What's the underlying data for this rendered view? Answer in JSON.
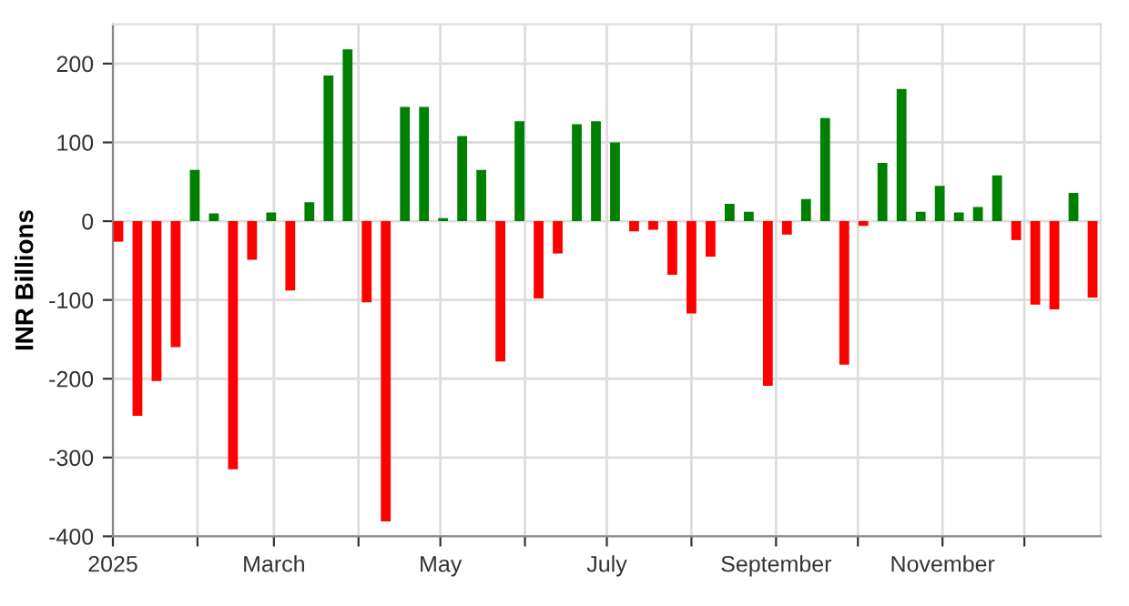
{
  "chart_data": {
    "type": "bar",
    "ylabel": "INR Billions",
    "x": [
      "2025-01-03",
      "2025-01-10",
      "2025-01-17",
      "2025-01-24",
      "2025-01-31",
      "2025-02-07",
      "2025-02-14",
      "2025-02-21",
      "2025-02-28",
      "2025-03-07",
      "2025-03-14",
      "2025-03-21",
      "2025-03-28",
      "2025-04-04",
      "2025-04-11",
      "2025-04-18",
      "2025-04-25",
      "2025-05-02",
      "2025-05-09",
      "2025-05-16",
      "2025-05-23",
      "2025-05-30",
      "2025-06-06",
      "2025-06-13",
      "2025-06-20",
      "2025-06-27",
      "2025-07-04",
      "2025-07-11",
      "2025-07-18",
      "2025-07-25",
      "2025-08-01",
      "2025-08-08",
      "2025-08-15",
      "2025-08-22",
      "2025-08-29",
      "2025-09-05",
      "2025-09-12",
      "2025-09-19",
      "2025-09-26",
      "2025-10-03",
      "2025-10-10",
      "2025-10-17",
      "2025-10-24",
      "2025-10-31",
      "2025-11-07",
      "2025-11-14",
      "2025-11-21",
      "2025-11-28",
      "2025-12-05",
      "2025-12-12",
      "2025-12-19",
      "2025-12-26"
    ],
    "values": [
      -26,
      -247,
      -203,
      -160,
      65,
      10,
      -315,
      -49,
      11,
      -88,
      24,
      185,
      218,
      -103,
      -381,
      145,
      145,
      4,
      108,
      65,
      -178,
      127,
      -98,
      -41,
      123,
      127,
      100,
      -13,
      -11,
      -68,
      -117,
      -45,
      22,
      12,
      -209,
      -17,
      28,
      131,
      -182,
      -6,
      74,
      168,
      12,
      45,
      11,
      18,
      58,
      -24,
      -106,
      -112,
      36,
      -97
    ],
    "colors": [
      "#ff0000",
      "#ff0000",
      "#ff0000",
      "#ff0000",
      "#008000",
      "#008000",
      "#ff0000",
      "#ff0000",
      "#008000",
      "#ff0000",
      "#008000",
      "#008000",
      "#008000",
      "#ff0000",
      "#ff0000",
      "#008000",
      "#008000",
      "#008000",
      "#008000",
      "#008000",
      "#ff0000",
      "#008000",
      "#ff0000",
      "#ff0000",
      "#008000",
      "#008000",
      "#008000",
      "#ff0000",
      "#ff0000",
      "#ff0000",
      "#ff0000",
      "#ff0000",
      "#008000",
      "#008000",
      "#ff0000",
      "#ff0000",
      "#008000",
      "#008000",
      "#ff0000",
      "#ff0000",
      "#008000",
      "#008000",
      "#008000",
      "#008000",
      "#008000",
      "#008000",
      "#008000",
      "#ff0000",
      "#ff0000",
      "#ff0000",
      "#008000",
      "#ff0000"
    ],
    "xlim": [
      "2025-01-01",
      "2025-12-29"
    ],
    "xticks": [
      {
        "value": "2025-01-01",
        "label": "2025"
      },
      {
        "value": "2025-02-01",
        "label": null
      },
      {
        "value": "2025-03-01",
        "label": "March"
      },
      {
        "value": "2025-04-01",
        "label": null
      },
      {
        "value": "2025-05-01",
        "label": "May"
      },
      {
        "value": "2025-06-01",
        "label": null
      },
      {
        "value": "2025-07-01",
        "label": "July"
      },
      {
        "value": "2025-08-01",
        "label": null
      },
      {
        "value": "2025-09-01",
        "label": "September"
      },
      {
        "value": "2025-10-01",
        "label": null
      },
      {
        "value": "2025-11-01",
        "label": "November"
      },
      {
        "value": "2025-12-01",
        "label": null
      }
    ],
    "ylim": [
      -400,
      250
    ],
    "yticks": [
      -400,
      -300,
      -200,
      -100,
      0,
      100,
      200
    ],
    "grid": true
  }
}
